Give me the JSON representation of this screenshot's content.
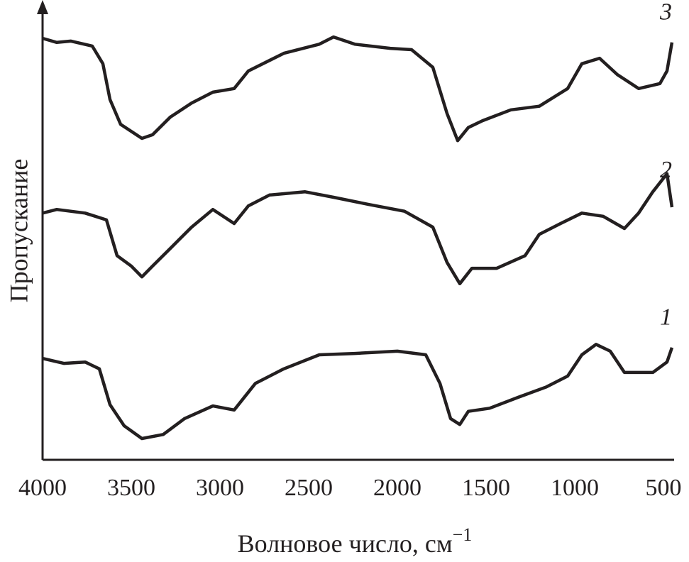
{
  "chart_data": {
    "type": "line",
    "x_label": {
      "text": "Волновое число, см",
      "superscript": "−1"
    },
    "y_label": "Пропускание",
    "xlim": [
      4000,
      450
    ],
    "ylim": [
      0,
      100
    ],
    "xticks": [
      4000,
      3500,
      3000,
      2500,
      2000,
      1500,
      1000,
      500
    ],
    "color": "#231f20",
    "series": [
      {
        "name": "1",
        "x": [
          4000,
          3880,
          3760,
          3680,
          3620,
          3540,
          3440,
          3320,
          3200,
          3040,
          2920,
          2800,
          2640,
          2440,
          2240,
          2000,
          1840,
          1760,
          1700,
          1648,
          1600,
          1480,
          1320,
          1160,
          1040,
          960,
          880,
          800,
          720,
          560,
          480,
          452
        ],
        "values": [
          22.4,
          21.3,
          21.6,
          20.1,
          12.2,
          7.5,
          4.7,
          5.6,
          9.1,
          11.9,
          11.0,
          16.9,
          20.1,
          23.2,
          23.5,
          24.0,
          23.2,
          16.9,
          9.1,
          7.8,
          10.7,
          11.4,
          13.8,
          16.1,
          18.5,
          23.2,
          25.5,
          24.0,
          19.3,
          19.3,
          21.6,
          24.8
        ]
      },
      {
        "name": "2",
        "x": [
          4000,
          3920,
          3760,
          3640,
          3580,
          3500,
          3440,
          3380,
          3280,
          3160,
          3040,
          2920,
          2840,
          2720,
          2520,
          2360,
          2160,
          1960,
          1800,
          1720,
          1648,
          1580,
          1440,
          1280,
          1200,
          1080,
          960,
          840,
          720,
          640,
          560,
          480,
          452
        ],
        "values": [
          54.5,
          55.3,
          54.5,
          53.0,
          45.1,
          42.8,
          40.4,
          42.8,
          46.7,
          51.4,
          55.3,
          52.2,
          56.1,
          58.5,
          59.2,
          58.0,
          56.4,
          54.9,
          51.4,
          43.6,
          38.9,
          42.3,
          42.3,
          45.1,
          49.8,
          52.2,
          54.5,
          53.8,
          51.1,
          54.5,
          59.2,
          63.2,
          55.8
        ]
      },
      {
        "name": "3",
        "x": [
          4000,
          3920,
          3840,
          3720,
          3660,
          3620,
          3560,
          3440,
          3380,
          3280,
          3160,
          3040,
          2920,
          2840,
          2640,
          2440,
          2360,
          2240,
          2040,
          1920,
          1800,
          1720,
          1660,
          1600,
          1520,
          1360,
          1200,
          1040,
          960,
          860,
          760,
          640,
          520,
          480,
          452
        ],
        "values": [
          93.1,
          92.2,
          92.5,
          91.4,
          87.5,
          79.6,
          74.1,
          71.0,
          71.8,
          75.7,
          78.8,
          81.2,
          82.0,
          85.9,
          89.8,
          91.8,
          93.4,
          91.8,
          90.9,
          90.6,
          86.7,
          76.5,
          70.5,
          73.4,
          74.9,
          77.3,
          78.1,
          82.0,
          87.5,
          88.7,
          85.1,
          82.0,
          83.1,
          85.9,
          92.2
        ]
      }
    ]
  }
}
